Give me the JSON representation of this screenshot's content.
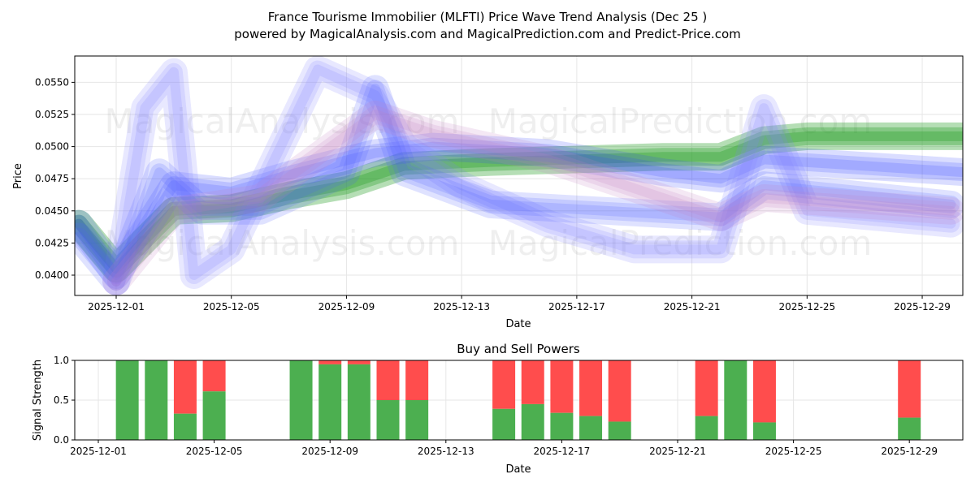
{
  "title": "France Tourisme Immobilier (MLFTI) Price Wave Trend Analysis (Dec 25 )",
  "subtitle": "powered by MagicalAnalysis.com and MagicalPrediction.com and Predict-Price.com",
  "watermarks": [
    "MagicalAnalysis.com",
    "MagicalPrediction.com"
  ],
  "chart_data": [
    {
      "type": "area",
      "title": "",
      "xlabel": "Date",
      "ylabel": "Price",
      "ylim": [
        0.0385,
        0.057
      ],
      "xticks": [
        "2025-12-01",
        "2025-12-05",
        "2025-12-09",
        "2025-12-13",
        "2025-12-17",
        "2025-12-21",
        "2025-12-25",
        "2025-12-29"
      ],
      "yticks": [
        "0.0400",
        "0.0425",
        "0.0450",
        "0.0475",
        "0.0500",
        "0.0525",
        "0.0550"
      ],
      "ytick_values": [
        0.04,
        0.0425,
        0.045,
        0.0475,
        0.05,
        0.0525,
        0.055
      ],
      "x_note": "x in days since 2025-12-01",
      "series": [
        {
          "name": "green band",
          "color": "#2ca02c",
          "x": [
            -1.3,
            0,
            2,
            4,
            6,
            8,
            10,
            13,
            16,
            19,
            21,
            22.5,
            24,
            29.5
          ],
          "y": [
            0.044,
            0.0405,
            0.045,
            0.0452,
            0.0462,
            0.047,
            0.0485,
            0.0488,
            0.049,
            0.0492,
            0.0492,
            0.0505,
            0.0508,
            0.0508
          ]
        },
        {
          "name": "wave 1",
          "color": "#3040ff",
          "x": [
            -1.3,
            0,
            2,
            4,
            6,
            9,
            11,
            15,
            19,
            21,
            22.5,
            29.5
          ],
          "y": [
            0.044,
            0.04,
            0.047,
            0.0465,
            0.0478,
            0.0495,
            0.05,
            0.0495,
            0.048,
            0.0475,
            0.049,
            0.048
          ]
        },
        {
          "name": "wave 2",
          "color": "#8080ff",
          "x": [
            0,
            1,
            2,
            2.7,
            4,
            7,
            9,
            10,
            12,
            15,
            18,
            21,
            22.5,
            24,
            29
          ],
          "y": [
            0.0395,
            0.053,
            0.0558,
            0.04,
            0.042,
            0.056,
            0.054,
            0.05,
            0.047,
            0.044,
            0.042,
            0.042,
            0.053,
            0.045,
            0.044
          ]
        },
        {
          "name": "wave 3",
          "color": "#5060ff",
          "x": [
            -1.3,
            0,
            1.5,
            3,
            5,
            8,
            9,
            10,
            13,
            17,
            21,
            22.5,
            29
          ],
          "y": [
            0.043,
            0.0395,
            0.048,
            0.045,
            0.045,
            0.048,
            0.0545,
            0.048,
            0.0455,
            0.045,
            0.0445,
            0.047,
            0.0455
          ]
        },
        {
          "name": "wave 4",
          "color": "#c080c0",
          "x": [
            0,
            2,
            5,
            9,
            11,
            15,
            21,
            22.5,
            29
          ],
          "y": [
            0.0395,
            0.045,
            0.046,
            0.0525,
            0.051,
            0.049,
            0.0445,
            0.046,
            0.045
          ]
        }
      ]
    },
    {
      "type": "bar",
      "title": "Buy and Sell Powers",
      "xlabel": "Date",
      "ylabel": "Signal Strength",
      "ylim": [
        0,
        1
      ],
      "xticks": [
        "2025-12-01",
        "2025-12-05",
        "2025-12-09",
        "2025-12-13",
        "2025-12-17",
        "2025-12-21",
        "2025-12-25",
        "2025-12-29"
      ],
      "yticks": [
        "0.0",
        "0.5",
        "1.0"
      ],
      "days": [
        1,
        2,
        3,
        4,
        7,
        8,
        9,
        10,
        11,
        14,
        15,
        16,
        17,
        18,
        21,
        22,
        23,
        28
      ],
      "buy": [
        1.0,
        1.0,
        0.33,
        0.61,
        1.0,
        0.95,
        0.95,
        0.5,
        0.5,
        0.39,
        0.45,
        0.34,
        0.3,
        0.23,
        0.3,
        1.0,
        0.22,
        0.28
      ],
      "buy_color": "#4caf50",
      "sell_color": "#ff4d4d"
    }
  ]
}
